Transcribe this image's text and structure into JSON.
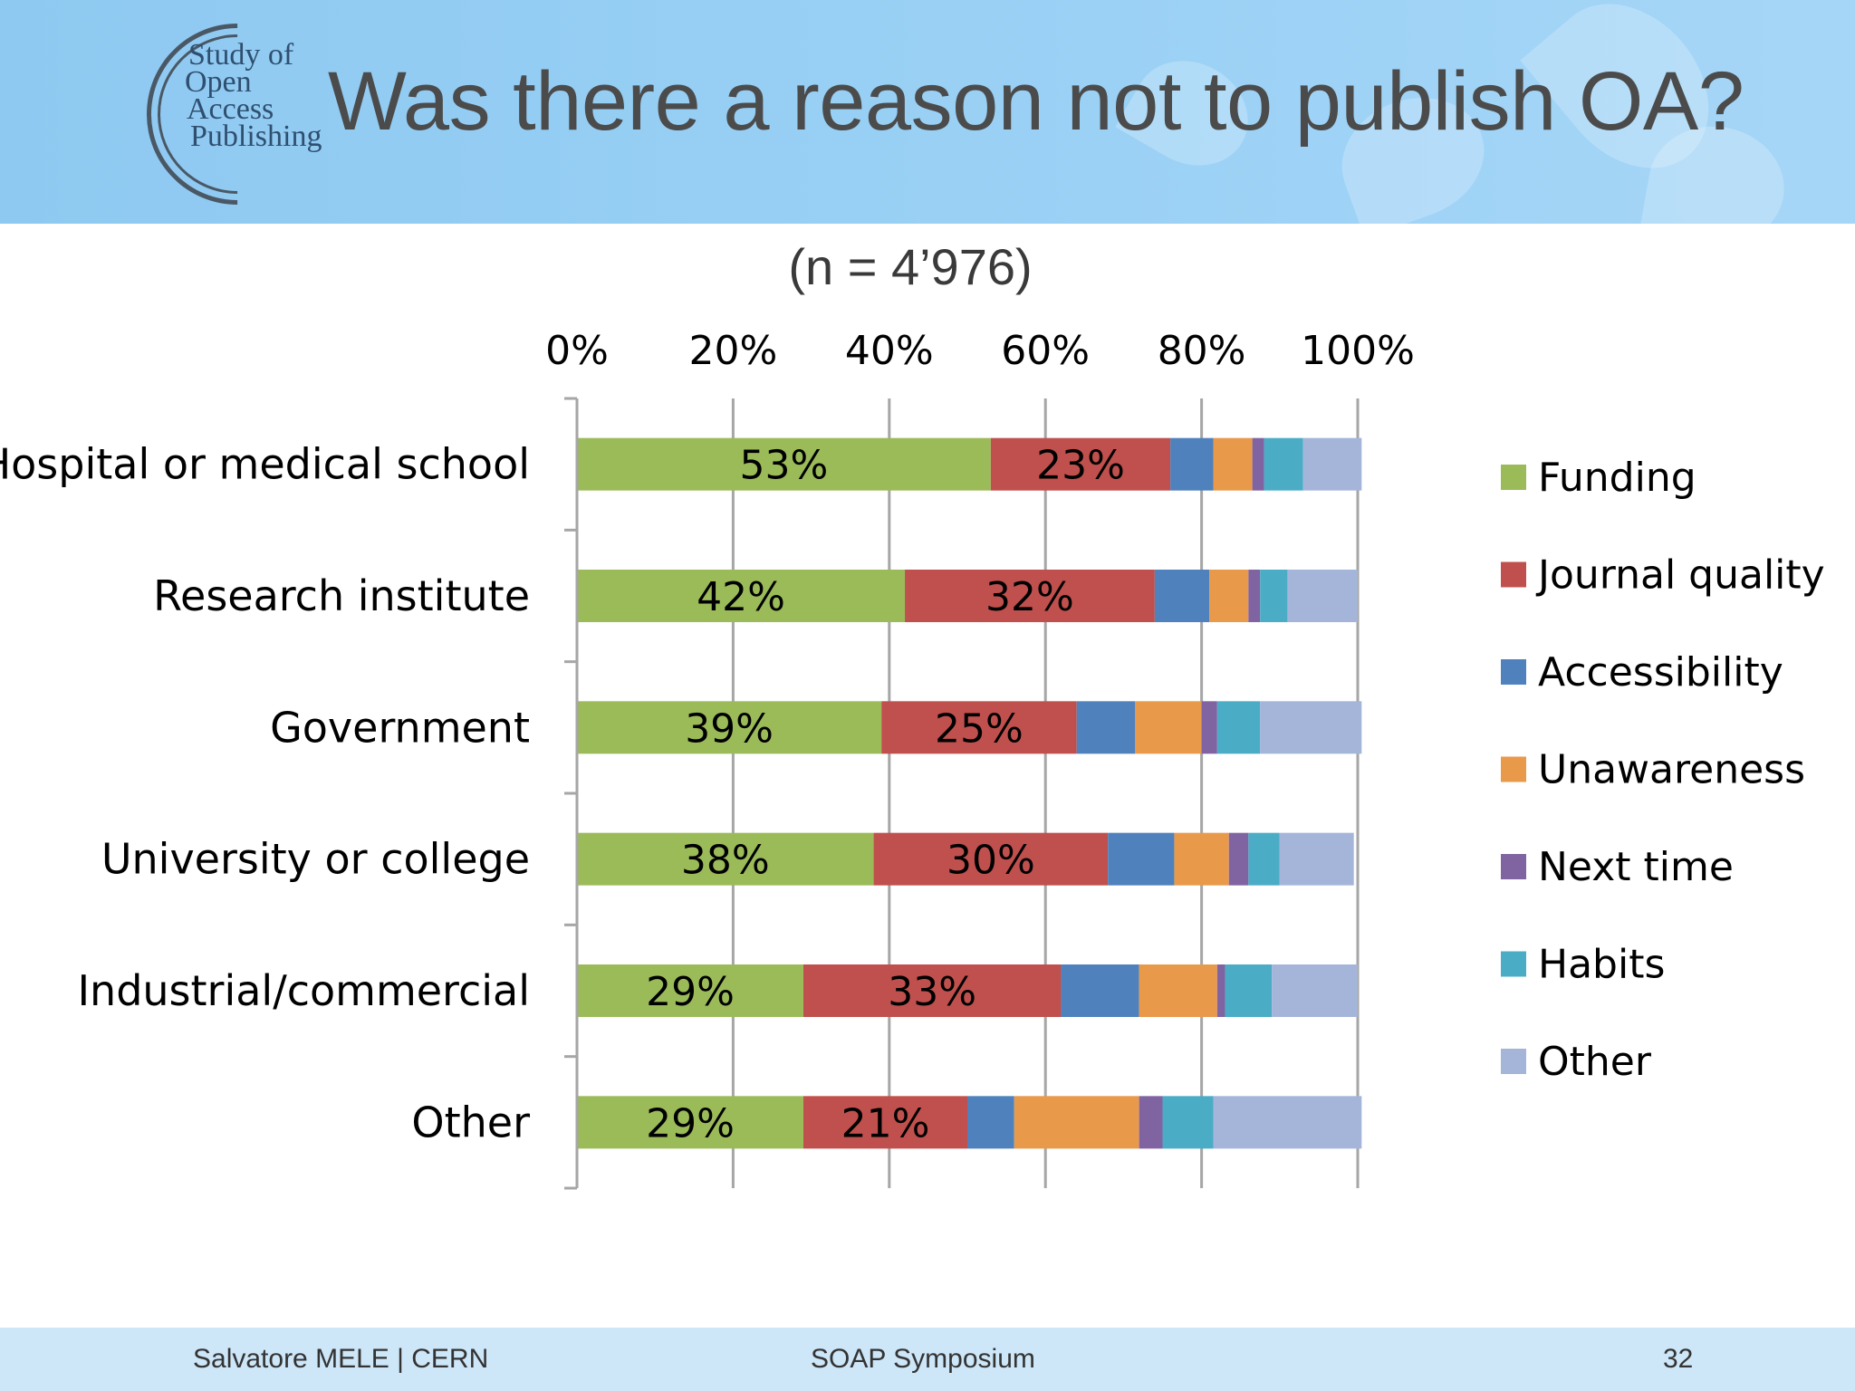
{
  "slide": {
    "title": "Was there a reason not to publish OA?",
    "subtitle": "(n = 4’976)",
    "logo_lines": [
      "Study of",
      "Open",
      "Access",
      "Publishing"
    ]
  },
  "footer": {
    "author": "Salvatore MELE | CERN",
    "event": "SOAP Symposium",
    "page": "32"
  },
  "chart_data": {
    "type": "bar",
    "orientation": "horizontal",
    "stacked": true,
    "title": "",
    "xlabel": "",
    "ylabel": "",
    "xlim": [
      0,
      100
    ],
    "x_ticks": [
      "0%",
      "20%",
      "40%",
      "60%",
      "80%",
      "100%"
    ],
    "x_axis_position": "top",
    "grid": true,
    "legend_position": "right",
    "categories": [
      "Hospital or medical school",
      "Research institute",
      "Government",
      "University or college",
      "Industrial/commercial",
      "Other"
    ],
    "series": [
      {
        "name": "Funding",
        "color": "#9bbb59",
        "values": [
          53,
          42,
          39,
          38,
          29,
          29
        ],
        "labels": [
          "53%",
          "42%",
          "39%",
          "38%",
          "29%",
          "29%"
        ]
      },
      {
        "name": "Journal quality",
        "color": "#c0504d",
        "values": [
          23,
          32,
          25,
          30,
          33,
          21
        ],
        "labels": [
          "23%",
          "32%",
          "25%",
          "30%",
          "33%",
          "21%"
        ]
      },
      {
        "name": "Accessibility",
        "color": "#4f81bd",
        "values": [
          5.5,
          7,
          7.5,
          8.5,
          10,
          6
        ]
      },
      {
        "name": "Unawareness",
        "color": "#e8994a",
        "values": [
          5,
          5,
          8.5,
          7,
          10,
          16
        ]
      },
      {
        "name": "Next time",
        "color": "#8064a2",
        "values": [
          1.5,
          1.5,
          2,
          2.5,
          1,
          3
        ]
      },
      {
        "name": "Habits",
        "color": "#4bacc6",
        "values": [
          5,
          3.5,
          5.5,
          4,
          6,
          6.5
        ]
      },
      {
        "name": "Other",
        "color": "#a5b5da",
        "values": [
          7.5,
          9,
          13,
          9.5,
          11,
          19
        ]
      }
    ]
  }
}
